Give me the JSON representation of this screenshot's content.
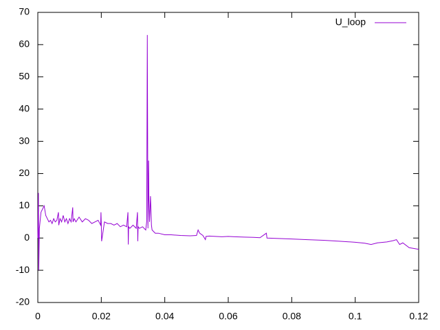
{
  "chart_data": {
    "type": "line",
    "series": [
      {
        "name": "U_loop",
        "color": "#9400d3",
        "x": [
          0,
          0.0002,
          0.0003,
          0.0005,
          0.0008,
          0.001,
          0.0015,
          0.002,
          0.0025,
          0.003,
          0.0035,
          0.004,
          0.0045,
          0.005,
          0.0055,
          0.006,
          0.0065,
          0.0066,
          0.007,
          0.0075,
          0.008,
          0.0085,
          0.009,
          0.0095,
          0.01,
          0.0105,
          0.011,
          0.0111,
          0.0115,
          0.012,
          0.013,
          0.014,
          0.015,
          0.016,
          0.017,
          0.018,
          0.019,
          0.0198,
          0.0199,
          0.02,
          0.0201,
          0.021,
          0.022,
          0.023,
          0.024,
          0.025,
          0.026,
          0.027,
          0.028,
          0.0284,
          0.0285,
          0.0286,
          0.029,
          0.03,
          0.031,
          0.0314,
          0.0315,
          0.0316,
          0.032,
          0.033,
          0.034,
          0.0343,
          0.0345,
          0.0347,
          0.0349,
          0.035,
          0.0352,
          0.0355,
          0.0358,
          0.036,
          0.037,
          0.038,
          0.04,
          0.042,
          0.045,
          0.048,
          0.05,
          0.0505,
          0.051,
          0.052,
          0.0528,
          0.053,
          0.054,
          0.056,
          0.058,
          0.06,
          0.062,
          0.065,
          0.068,
          0.07,
          0.072,
          0.0722,
          0.075,
          0.08,
          0.085,
          0.09,
          0.095,
          0.1,
          0.103,
          0.105,
          0.107,
          0.11,
          0.112,
          0.113,
          0.114,
          0.115,
          0.117,
          0.12
        ],
        "values": [
          0,
          14,
          -10,
          3,
          6,
          8,
          9,
          10,
          7,
          6,
          5,
          5.5,
          4.5,
          6,
          5,
          5.5,
          8,
          4,
          6,
          5,
          7,
          5,
          6,
          4.5,
          6,
          5,
          9.5,
          5,
          6,
          5,
          6.5,
          5,
          6,
          5.5,
          4.5,
          5,
          5.5,
          4,
          8,
          4.5,
          -1,
          5,
          4.5,
          4.5,
          4,
          4.5,
          3.5,
          4,
          3.5,
          8,
          -2,
          3.5,
          3,
          4,
          3,
          8,
          -1,
          3.5,
          3,
          3.5,
          2.5,
          5,
          63,
          3,
          24,
          12,
          5,
          13,
          4,
          2.5,
          1.5,
          1.5,
          1,
          1,
          0.8,
          0.7,
          0.8,
          2.5,
          1.5,
          0.8,
          -0.5,
          0.5,
          0.6,
          0.5,
          0.4,
          0.5,
          0.4,
          0.3,
          0.2,
          0.1,
          1.5,
          0,
          -0.1,
          -0.3,
          -0.5,
          -0.7,
          -1,
          -1.3,
          -1.6,
          -2,
          -1.5,
          -1.2,
          -0.8,
          -0.5,
          -2,
          -1.5,
          -3,
          -3.5
        ]
      }
    ],
    "xlim": [
      0,
      0.12
    ],
    "xticks": [
      0,
      0.02,
      0.04,
      0.06,
      0.08,
      0.1,
      0.12
    ],
    "ylim": [
      -20,
      70
    ],
    "yticks": [
      -20,
      -10,
      0,
      10,
      20,
      30,
      40,
      50,
      60,
      70
    ],
    "legend": "top-right",
    "grid": false
  }
}
